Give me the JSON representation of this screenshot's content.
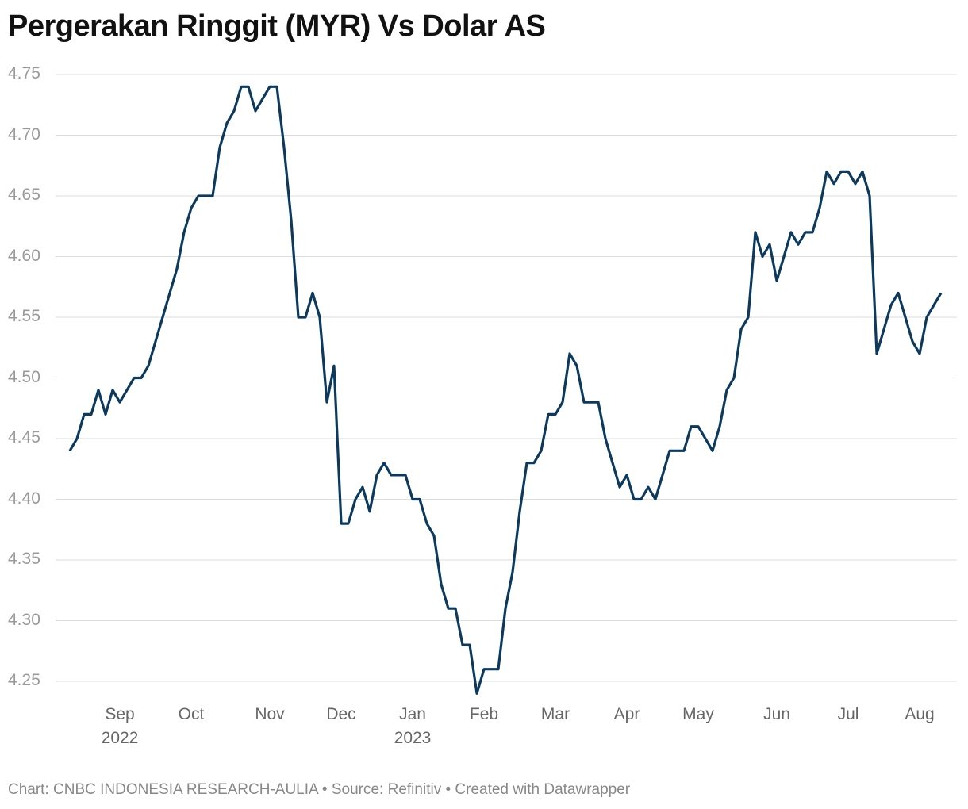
{
  "chart_data": {
    "type": "line",
    "title": "Pergerakan Ringgit (MYR) Vs Dolar AS",
    "source": "Chart: CNBC INDONESIA RESEARCH-AULIA • Source: Refinitiv • Created with Datawrapper",
    "color": "#0b3a5e",
    "grid": true,
    "ylim": [
      4.24,
      4.76
    ],
    "yticks": [
      4.75,
      {
        "value": 4.7,
        "label": "4.70"
      },
      4.65,
      {
        "value": 4.6,
        "label": "4.60"
      },
      4.55,
      {
        "value": 4.5,
        "label": "4.50"
      },
      4.45,
      {
        "value": 4.4,
        "label": "4.40"
      },
      4.35,
      {
        "value": 4.3,
        "label": "4.30"
      },
      4.25
    ],
    "categories": [
      null,
      null,
      null,
      null,
      null,
      null,
      null,
      "Sep\n2022",
      null,
      null,
      null,
      null,
      null,
      null,
      null,
      null,
      null,
      "Oct",
      null,
      null,
      null,
      null,
      null,
      null,
      null,
      null,
      null,
      null,
      "Nov",
      null,
      null,
      null,
      null,
      null,
      null,
      null,
      null,
      null,
      "Dec",
      null,
      null,
      null,
      null,
      null,
      null,
      null,
      null,
      null,
      "Jan\n2023",
      null,
      null,
      null,
      null,
      null,
      null,
      null,
      null,
      null,
      "Feb",
      null,
      null,
      null,
      null,
      null,
      null,
      null,
      null,
      null,
      "Mar",
      null,
      null,
      null,
      null,
      null,
      null,
      null,
      null,
      null,
      "Apr",
      null,
      null,
      null,
      null,
      null,
      null,
      null,
      null,
      null,
      "May",
      null,
      null,
      null,
      null,
      null,
      null,
      null,
      null,
      null,
      null,
      "Jun",
      null,
      null,
      null,
      null,
      null,
      null,
      null,
      null,
      null,
      "Jul",
      null,
      null,
      null,
      null,
      null,
      null,
      null,
      null,
      null,
      "Aug",
      null,
      null,
      null
    ],
    "values": [
      4.44,
      4.45,
      4.47,
      4.47,
      4.49,
      4.47,
      4.49,
      4.48,
      4.49,
      4.5,
      4.5,
      4.51,
      4.53,
      4.55,
      4.57,
      4.59,
      4.62,
      4.64,
      4.65,
      4.65,
      4.65,
      4.69,
      4.71,
      4.72,
      4.74,
      4.74,
      4.72,
      4.73,
      4.74,
      4.74,
      4.69,
      4.63,
      4.55,
      4.55,
      4.57,
      4.55,
      4.48,
      4.51,
      4.38,
      4.38,
      4.4,
      4.41,
      4.39,
      4.42,
      4.43,
      4.42,
      4.42,
      4.42,
      4.4,
      4.4,
      4.38,
      4.37,
      4.33,
      4.31,
      4.31,
      4.28,
      4.28,
      4.24,
      4.26,
      4.26,
      4.26,
      4.31,
      4.34,
      4.39,
      4.43,
      4.43,
      4.44,
      4.47,
      4.47,
      4.48,
      4.52,
      4.51,
      4.48,
      4.48,
      4.48,
      4.45,
      4.43,
      4.41,
      4.42,
      4.4,
      4.4,
      4.41,
      4.4,
      4.42,
      4.44,
      4.44,
      4.44,
      4.46,
      4.46,
      4.45,
      4.44,
      4.46,
      4.49,
      4.5,
      4.54,
      4.55,
      4.62,
      4.6,
      4.61,
      4.58,
      4.6,
      4.62,
      4.61,
      4.62,
      4.62,
      4.64,
      4.67,
      4.66,
      4.67,
      4.67,
      4.66,
      4.67,
      4.65,
      4.52,
      4.54,
      4.56,
      4.57,
      4.55,
      4.53,
      4.52,
      4.55,
      4.56,
      4.57
    ]
  }
}
